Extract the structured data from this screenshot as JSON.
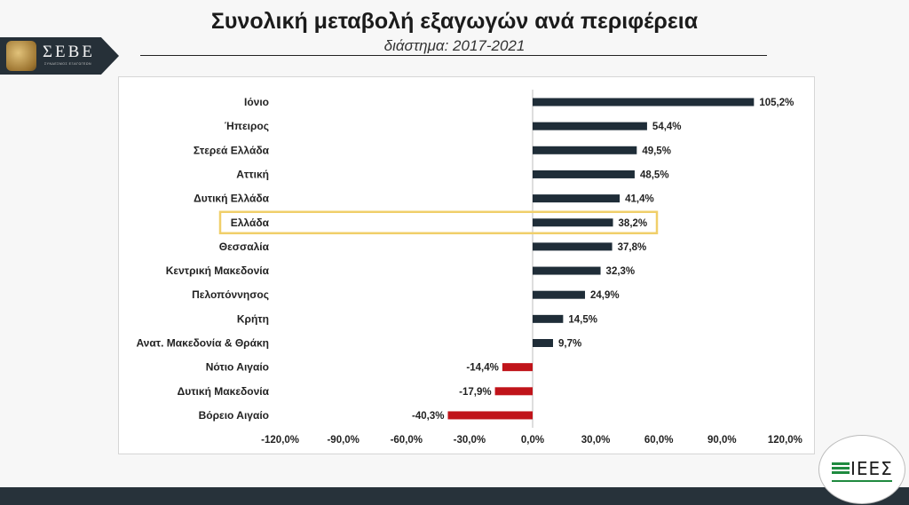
{
  "header": {
    "title": "Συνολική μεταβολή εξαγωγών ανά περιφέρεια",
    "subtitle": "διάστημα: 2017-2021"
  },
  "logos": {
    "seve_text": "ΣΕΒΕ",
    "seve_tagline": "ΣΥΝΔΕΣΜΟΣ ΕΞΑΓΩΓΕΩΝ",
    "iees_text": "ΙΕΕΣ"
  },
  "colors": {
    "positive_bar": "#1f2d38",
    "negative_bar": "#c0141a",
    "highlight_border": "#f0cf6a",
    "footer": "#27323a"
  },
  "chart_data": {
    "type": "bar",
    "orientation": "horizontal",
    "title": "Συνολική μεταβολή εξαγωγών ανά περιφέρεια",
    "subtitle": "διάστημα: 2017-2021",
    "categories": [
      "Ιόνιο",
      "Ήπειρος",
      "Στερεά Ελλάδα",
      "Αττική",
      "Δυτική Ελλάδα",
      "Ελλάδα",
      "Θεσσαλία",
      "Κεντρική Μακεδονία",
      "Πελοπόννησος",
      "Κρήτη",
      "Ανατ. Μακεδονία & Θράκη",
      "Νότιο Αιγαίο",
      "Δυτική Μακεδονία",
      "Βόρειο Αιγαίο"
    ],
    "values": [
      105.2,
      54.4,
      49.5,
      48.5,
      41.4,
      38.2,
      37.8,
      32.3,
      24.9,
      14.5,
      9.7,
      -14.4,
      -17.9,
      -40.3
    ],
    "data_labels": [
      "105,2%",
      "54,4%",
      "49,5%",
      "48,5%",
      "41,4%",
      "38,2%",
      "37,8%",
      "32,3%",
      "24,9%",
      "14,5%",
      "9,7%",
      "-14,4%",
      "-17,9%",
      "-40,3%"
    ],
    "highlight_category": "Ελλάδα",
    "xlim": [
      -120,
      120
    ],
    "x_ticks": [
      -120,
      -90,
      -60,
      -30,
      0,
      30,
      60,
      90,
      120
    ],
    "x_tick_labels": [
      "-120,0%",
      "-90,0%",
      "-60,0%",
      "-30,0%",
      "0,0%",
      "30,0%",
      "60,0%",
      "90,0%",
      "120,0%"
    ],
    "xlabel": "",
    "ylabel": "",
    "grid": false,
    "legend": "none"
  }
}
